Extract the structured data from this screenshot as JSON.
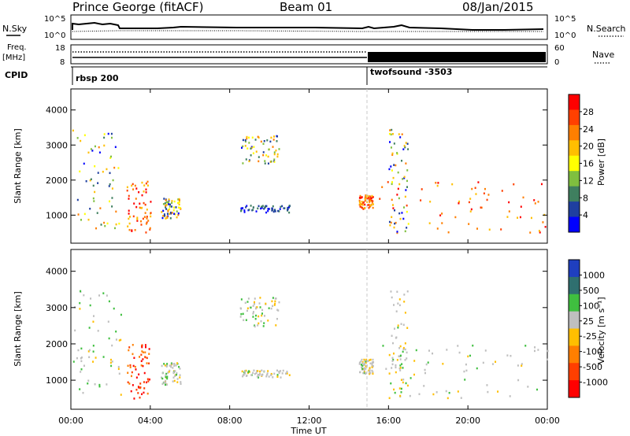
{
  "header": {
    "station": "Prince George (fitACF)",
    "beam": "Beam 01",
    "date": "08/Jan/2015"
  },
  "top_panels": {
    "nsky_label": "N.Sky",
    "nsearch_label": "N.Search",
    "nsky_ticks": [
      "10^5",
      "10^0"
    ],
    "nsearch_ticks": [
      "10^5",
      "10^0"
    ],
    "freq_label": "Freq.",
    "freq_unit": "[MHz]",
    "freq_ticks": [
      "18",
      "8"
    ],
    "nave_label": "Nave",
    "nave_ticks": [
      "60",
      "0"
    ],
    "cpid_label": "CPID",
    "cpid_segments": [
      {
        "name": "rbsp 200",
        "start_hour": 0.0
      },
      {
        "name": "twofsound -3503",
        "start_hour": 15.0
      }
    ]
  },
  "power_scale": {
    "label": "Power [dB]",
    "ticks": [
      "28",
      "24",
      "20",
      "16",
      "12",
      "8",
      "4"
    ],
    "colors": [
      "#ff0000",
      "#ff4000",
      "#ff7f00",
      "#ffbf00",
      "#ffff00",
      "#7fbf3f",
      "#3f7f5f",
      "#1f3fa0",
      "#0000ff"
    ]
  },
  "velocity_scale": {
    "label": "Velocity [m s⁻¹]",
    "ticks": [
      "1000",
      "500",
      "100",
      "25",
      "-25",
      "-100",
      "-500",
      "-1000"
    ],
    "colors": [
      "#1f3fbf",
      "#2f6f6f",
      "#3fbf3f",
      "#bfbfbf",
      "#ffbf00",
      "#ff7f00",
      "#ff3f00",
      "#ff0000"
    ]
  },
  "chart_data": [
    {
      "type": "heatmap",
      "title": "Power",
      "ylabel": "Slant Range [km]",
      "yticks": [
        "1000",
        "2000",
        "3000",
        "4000"
      ],
      "ylim": [
        200,
        4600
      ],
      "xlim": [
        0,
        24
      ],
      "regions": [
        {
          "t": [
            0.0,
            2.5
          ],
          "r": [
            600,
            3500
          ],
          "level": "mixed"
        },
        {
          "t": [
            2.8,
            4.0
          ],
          "r": [
            500,
            2000
          ],
          "level": "high"
        },
        {
          "t": [
            4.5,
            5.5
          ],
          "r": [
            900,
            1500
          ],
          "level": "mixed"
        },
        {
          "t": [
            8.5,
            10.5
          ],
          "r": [
            2500,
            3300
          ],
          "level": "mixed"
        },
        {
          "t": [
            8.5,
            11.0
          ],
          "r": [
            1100,
            1300
          ],
          "level": "low"
        },
        {
          "t": [
            14.5,
            15.2
          ],
          "r": [
            1200,
            1600
          ],
          "level": "high"
        },
        {
          "t": [
            15.5,
            24.0
          ],
          "r": [
            500,
            2000
          ],
          "level": "high"
        },
        {
          "t": [
            16.0,
            17.0
          ],
          "r": [
            500,
            3500
          ],
          "level": "mixed"
        }
      ]
    },
    {
      "type": "heatmap",
      "title": "Velocity",
      "ylabel": "Slant Range [km]",
      "xlabel": "Time UT",
      "yticks": [
        "1000",
        "2000",
        "3000",
        "4000"
      ],
      "xticks": [
        "00:00",
        "04:00",
        "08:00",
        "12:00",
        "16:00",
        "20:00",
        "00:00"
      ],
      "ylim": [
        200,
        4600
      ],
      "xlim": [
        0,
        24
      ]
    }
  ]
}
